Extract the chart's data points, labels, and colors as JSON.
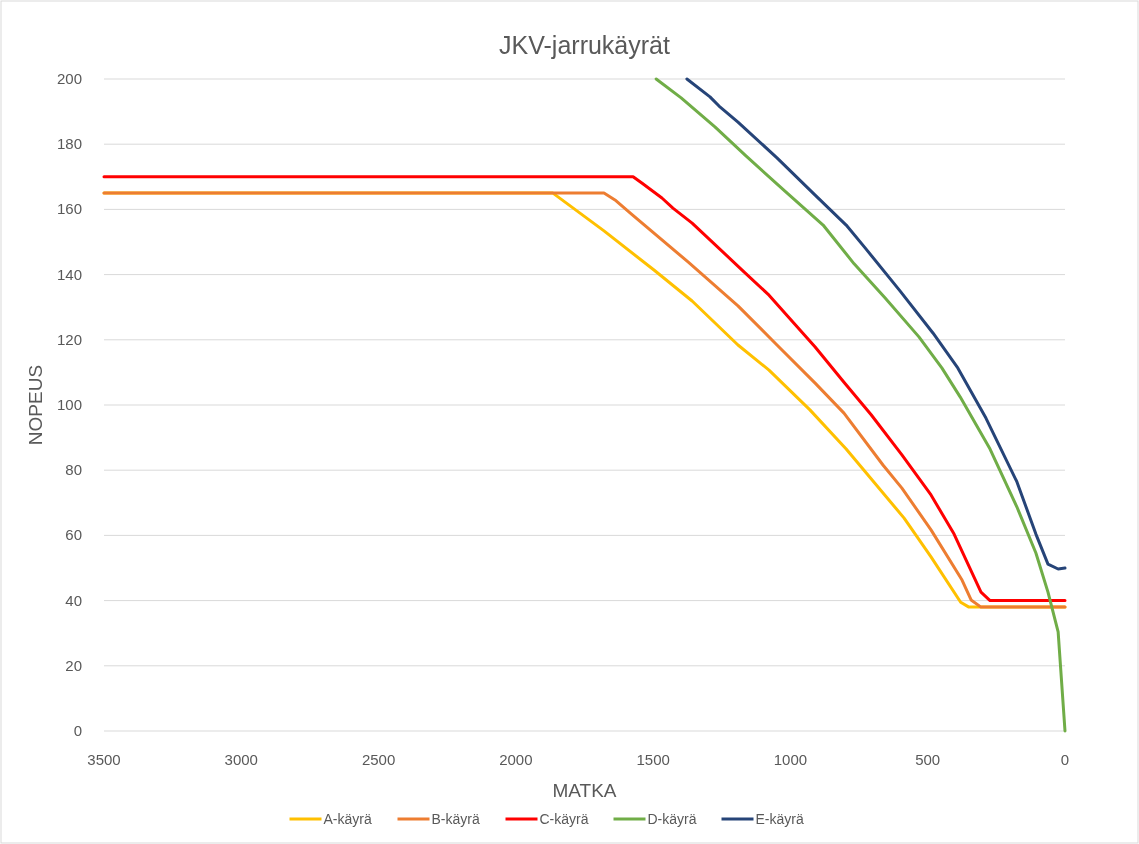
{
  "chart_data": {
    "type": "line",
    "title": "JKV-jarrukäyrät",
    "xlabel": "MATKA",
    "ylabel": "NOPEUS",
    "xlim": [
      3500,
      0
    ],
    "ylim": [
      0,
      200
    ],
    "xticks": [
      3500,
      3000,
      2500,
      2000,
      1500,
      1000,
      500,
      0
    ],
    "yticks": [
      0,
      20,
      40,
      60,
      80,
      100,
      120,
      140,
      160,
      180,
      200
    ],
    "grid": "y",
    "legend": "bottom",
    "marker": "none",
    "line_style": "solid",
    "series": [
      {
        "name": "A-käyrä",
        "color": "#ffc000",
        "x": [
          3500,
          1865,
          1679,
          1497,
          1358,
          1191,
          1078,
          929,
          797,
          586,
          488,
          380,
          350,
          0
        ],
        "values": [
          165,
          165,
          153.4,
          141.4,
          131.9,
          118.4,
          110.7,
          98.5,
          86.5,
          65.3,
          53.4,
          39.5,
          38,
          38
        ]
      },
      {
        "name": "B-käyrä",
        "color": "#ed7d31",
        "x": [
          3500,
          1679,
          1639,
          1580,
          1373,
          1191,
          1049,
          910,
          805,
          663,
          594,
          488,
          375,
          342,
          306,
          0
        ],
        "values": [
          165,
          165,
          162.9,
          158.6,
          143.9,
          130.4,
          118.4,
          106.7,
          97.5,
          81.6,
          74.5,
          61.7,
          46.3,
          40.2,
          38,
          38
        ]
      },
      {
        "name": "C-käyrä",
        "color": "#ff0000",
        "x": [
          3500,
          1573,
          1540,
          1468,
          1428,
          1358,
          1176,
          1078,
          910,
          805,
          706,
          594,
          488,
          404,
          306,
          273,
          0
        ],
        "values": [
          170,
          170,
          168,
          163.5,
          160.4,
          155.8,
          141.4,
          133.7,
          117.8,
          107,
          97,
          84.7,
          72.4,
          60.4,
          42.6,
          40,
          40
        ]
      },
      {
        "name": "D-käyrä",
        "color": "#70ad47",
        "x": [
          1489,
          1398,
          1275,
          1162,
          1020,
          881,
          768,
          655,
          532,
          448,
          382,
          273,
          175,
          106,
          62,
          25,
          0
        ],
        "values": [
          200,
          194.2,
          185.3,
          176.4,
          165.6,
          155.2,
          143.3,
          132.8,
          120.9,
          111.3,
          102.5,
          86.5,
          68.7,
          54.6,
          42.6,
          30.4,
          0
        ]
      },
      {
        "name": "E-käyrä",
        "color": "#264478",
        "x": [
          1377,
          1293,
          1260,
          1191,
          1049,
          910,
          797,
          728,
          601,
          481,
          390,
          288,
          175,
          106,
          62,
          25,
          0
        ],
        "values": [
          200,
          194.5,
          191.7,
          186.8,
          175.8,
          164.4,
          155.2,
          148.2,
          135,
          122.1,
          111.3,
          96,
          76.4,
          60.4,
          51.2,
          49.7,
          50
        ]
      }
    ]
  }
}
